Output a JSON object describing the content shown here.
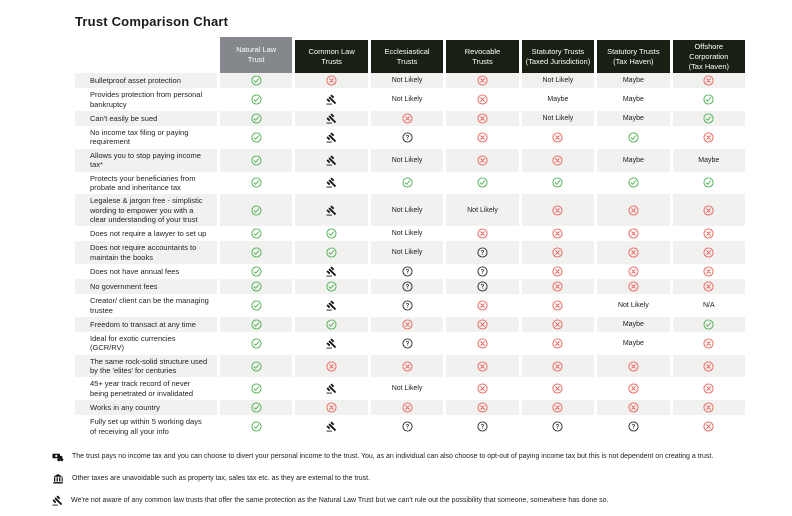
{
  "page": {
    "title": "Trust Comparison Chart"
  },
  "colors": {
    "check_green": "#4caf50",
    "cross_red": "#e8625a",
    "question_dark": "#2b2b2b",
    "header_dark": "#1a1f13",
    "header_gray": "#84878b",
    "row_stripe": "#f1f1ef"
  },
  "table": {
    "columns": [
      {
        "key": "natural-law-trust",
        "line1": "Natural Law",
        "line2": "Trust",
        "variant": "gray"
      },
      {
        "key": "common-law-trusts",
        "line1": "Common Law",
        "line2": "Trusts",
        "variant": "dark"
      },
      {
        "key": "ecclesiastical-trusts",
        "line1": "Ecclesiastical",
        "line2": "Trusts",
        "variant": "dark"
      },
      {
        "key": "revocable-trusts",
        "line1": "Revocable",
        "line2": "Trusts",
        "variant": "dark"
      },
      {
        "key": "statutory-trusts-taxed-jurisdiction",
        "line1": "Statutory Trusts",
        "line2": "(Taxed Jurisdiction)",
        "variant": "dark"
      },
      {
        "key": "statutory-trusts-tax-haven",
        "line1": "Statutory Trusts",
        "line2": "(Tax Haven)",
        "variant": "dark"
      },
      {
        "key": "offshore-corporation-tax-haven",
        "line1": "Offshore Corporation",
        "line2": "(Tax Haven)",
        "variant": "dark"
      }
    ],
    "cell_text": {
      "not_likely": "Not Likely",
      "maybe": "Maybe",
      "na": "N/A"
    },
    "rows": [
      {
        "label": "Bulletproof asset protection",
        "cells": [
          "check",
          "cross",
          "not_likely",
          "cross",
          "not_likely",
          "maybe",
          "cross"
        ]
      },
      {
        "label": "Provides protection from personal bankruptcy",
        "cells": [
          "check",
          "gavel",
          "not_likely",
          "cross",
          "maybe",
          "maybe",
          "check"
        ]
      },
      {
        "label": "Can't easily be sued",
        "cells": [
          "check",
          "gavel",
          "cross",
          "cross",
          "not_likely",
          "maybe",
          "check"
        ]
      },
      {
        "label": "No income tax filing or paying requirement",
        "cells": [
          "check",
          "gavel",
          "question",
          "cross",
          "cross",
          "check",
          "cross"
        ]
      },
      {
        "label": "Allows you to stop paying income tax*",
        "cells": [
          "check",
          "gavel",
          "not_likely",
          "cross",
          "cross",
          "maybe",
          "maybe"
        ]
      },
      {
        "label": "Protects your beneficiaries from probate and inheritance tax",
        "cells": [
          "check",
          "gavel",
          "check",
          "check",
          "check",
          "check",
          "check"
        ]
      },
      {
        "label": "Legalese & jargon free - simplistic wording to empower you with a clear understanding of your trust",
        "cells": [
          "check",
          "gavel",
          "not_likely",
          "not_likely",
          "cross",
          "cross",
          "cross"
        ]
      },
      {
        "label": "Does not require a lawyer to set up",
        "cells": [
          "check",
          "check",
          "not_likely",
          "cross",
          "cross",
          "cross",
          "cross"
        ]
      },
      {
        "label": "Does not require accountants to maintain the books",
        "cells": [
          "check",
          "check",
          "not_likely",
          "question",
          "cross",
          "cross",
          "cross"
        ]
      },
      {
        "label": "Does not have annual fees",
        "cells": [
          "check",
          "gavel",
          "question",
          "question",
          "cross",
          "cross",
          "cross"
        ]
      },
      {
        "label": "No government fees",
        "cells": [
          "check",
          "check",
          "question",
          "question",
          "cross",
          "cross",
          "cross"
        ]
      },
      {
        "label": "Creator/ client can be the managing trustee",
        "cells": [
          "check",
          "gavel",
          "question",
          "cross",
          "cross",
          "not_likely",
          "na"
        ]
      },
      {
        "label": "Freedom to transact at any time",
        "cells": [
          "check",
          "check",
          "cross",
          "cross",
          "cross",
          "maybe",
          "check"
        ]
      },
      {
        "label": "Ideal for exotic currencies (GCR/RV)",
        "cells": [
          "check",
          "gavel",
          "question",
          "cross",
          "cross",
          "maybe",
          "cross"
        ]
      },
      {
        "label": "The same rock-solid structure used by the 'elites' for centuries",
        "cells": [
          "check",
          "cross",
          "cross",
          "cross",
          "cross",
          "cross",
          "cross"
        ]
      },
      {
        "label": "45+ year track record of never being penetrated or invalidated",
        "cells": [
          "check",
          "gavel",
          "not_likely",
          "cross",
          "cross",
          "cross",
          "cross"
        ]
      },
      {
        "label": "Works in any country",
        "cells": [
          "check",
          "cross",
          "cross",
          "cross",
          "cross",
          "cross",
          "cross"
        ]
      },
      {
        "label": "Fully set up within 5 working days of receiving all your info",
        "cells": [
          "check",
          "gavel",
          "question",
          "question",
          "question",
          "question",
          "cross"
        ]
      }
    ]
  },
  "footnotes": [
    {
      "icon": "money-icon",
      "text": "The trust pays no income tax and you can choose to divert your personal income to the trust. You, as an individual can also choose to opt-out of paying income tax but this is not dependent on creating a trust."
    },
    {
      "icon": "bank-icon",
      "text": "Other taxes are unavoidable such as property tax, sales tax etc. as they are external to the trust."
    },
    {
      "icon": "gavel-icon",
      "text": "We're not aware of any common law trusts that offer the same protection as the Natural Law Trust but we can't rule out the possibility that someone, somewhere has done so."
    }
  ]
}
